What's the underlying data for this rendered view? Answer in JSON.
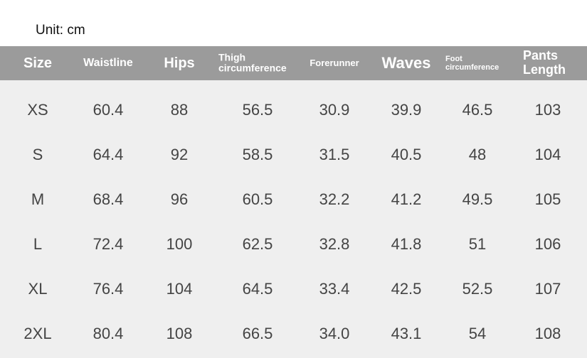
{
  "unit": "Unit: cm",
  "table": {
    "header": [
      "Size",
      "Waistline",
      "Hips",
      "Thigh circumference",
      "Forerunner",
      "Waves",
      "Foot circumference",
      "Pants Length"
    ],
    "rows": [
      [
        "XS",
        "60.4",
        "88",
        "56.5",
        "30.9",
        "39.9",
        "46.5",
        "103"
      ],
      [
        "S",
        "64.4",
        "92",
        "58.5",
        "31.5",
        "40.5",
        "48",
        "104"
      ],
      [
        "M",
        "68.4",
        "96",
        "60.5",
        "32.2",
        "41.2",
        "49.5",
        "105"
      ],
      [
        "L",
        "72.4",
        "100",
        "62.5",
        "32.8",
        "41.8",
        "51",
        "106"
      ],
      [
        "XL",
        "76.4",
        "104",
        "64.5",
        "33.4",
        "42.5",
        "52.5",
        "107"
      ],
      [
        "2XL",
        "80.4",
        "108",
        "66.5",
        "34.0",
        "43.1",
        "54",
        "108"
      ]
    ]
  }
}
